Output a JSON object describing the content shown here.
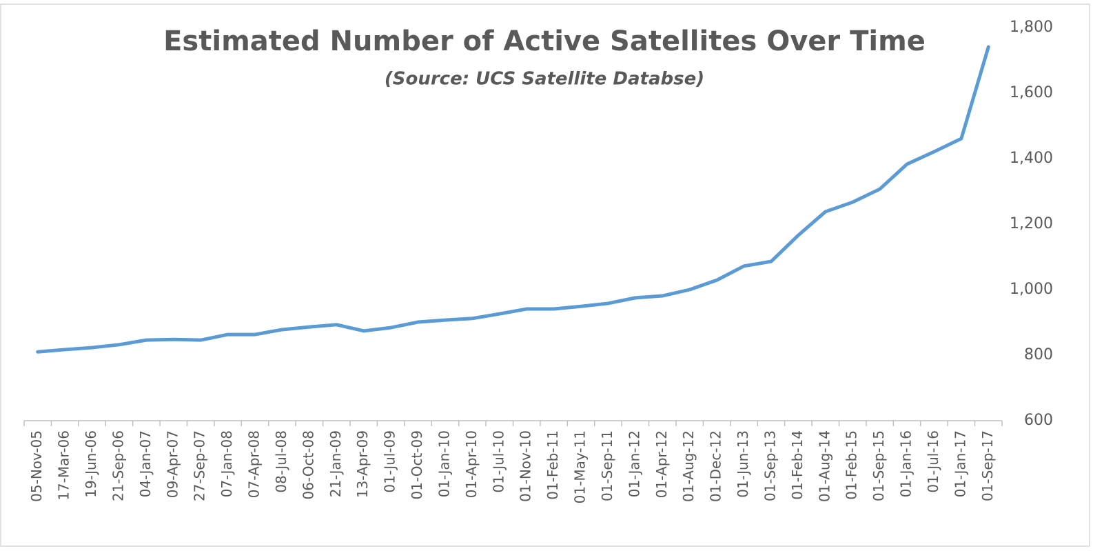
{
  "chart_data": {
    "type": "line",
    "title": "Estimated Number of Active Satellites Over Time",
    "subtitle": "(Source: UCS Satellite Databse)",
    "categories": [
      "05-Nov-05",
      "17-Mar-06",
      "19-Jun-06",
      "21-Sep-06",
      "04-Jan-07",
      "09-Apr-07",
      "27-Sep-07",
      "07-Jan-08",
      "07-Apr-08",
      "08-Jul-08",
      "06-Oct-08",
      "21-Jan-09",
      "13-Apr-09",
      "01-Jul-09",
      "01-Oct-09",
      "01-Jan-10",
      "01-Apr-10",
      "01-Jul-10",
      "01-Nov-10",
      "01-Feb-11",
      "01-May-11",
      "01-Sep-11",
      "01-Jan-12",
      "01-Apr-12",
      "01-Aug-12",
      "01-Dec-12",
      "01-Jun-13",
      "01-Sep-13",
      "01-Feb-14",
      "01-Aug-14",
      "01-Feb-15",
      "01-Sep-15",
      "01-Jan-16",
      "01-Jul-16",
      "01-Jan-17",
      "01-Sep-17"
    ],
    "values": [
      810,
      817,
      823,
      832,
      846,
      848,
      846,
      863,
      863,
      878,
      886,
      893,
      874,
      884,
      901,
      907,
      912,
      926,
      941,
      941,
      949,
      958,
      975,
      981,
      1000,
      1029,
      1072,
      1086,
      1166,
      1238,
      1267,
      1307,
      1383,
      1421,
      1461,
      1741
    ],
    "color": "#5b9bd5",
    "ylim": [
      600,
      1800
    ],
    "yticks": [
      600,
      800,
      {
        "value": 1000,
        "label": "1,000"
      },
      {
        "value": 1200,
        "label": "1,200"
      },
      {
        "value": 1400,
        "label": "1,400"
      },
      {
        "value": 1600,
        "label": "1,600"
      },
      {
        "value": 1800,
        "label": "1,800"
      }
    ],
    "grid": false
  }
}
